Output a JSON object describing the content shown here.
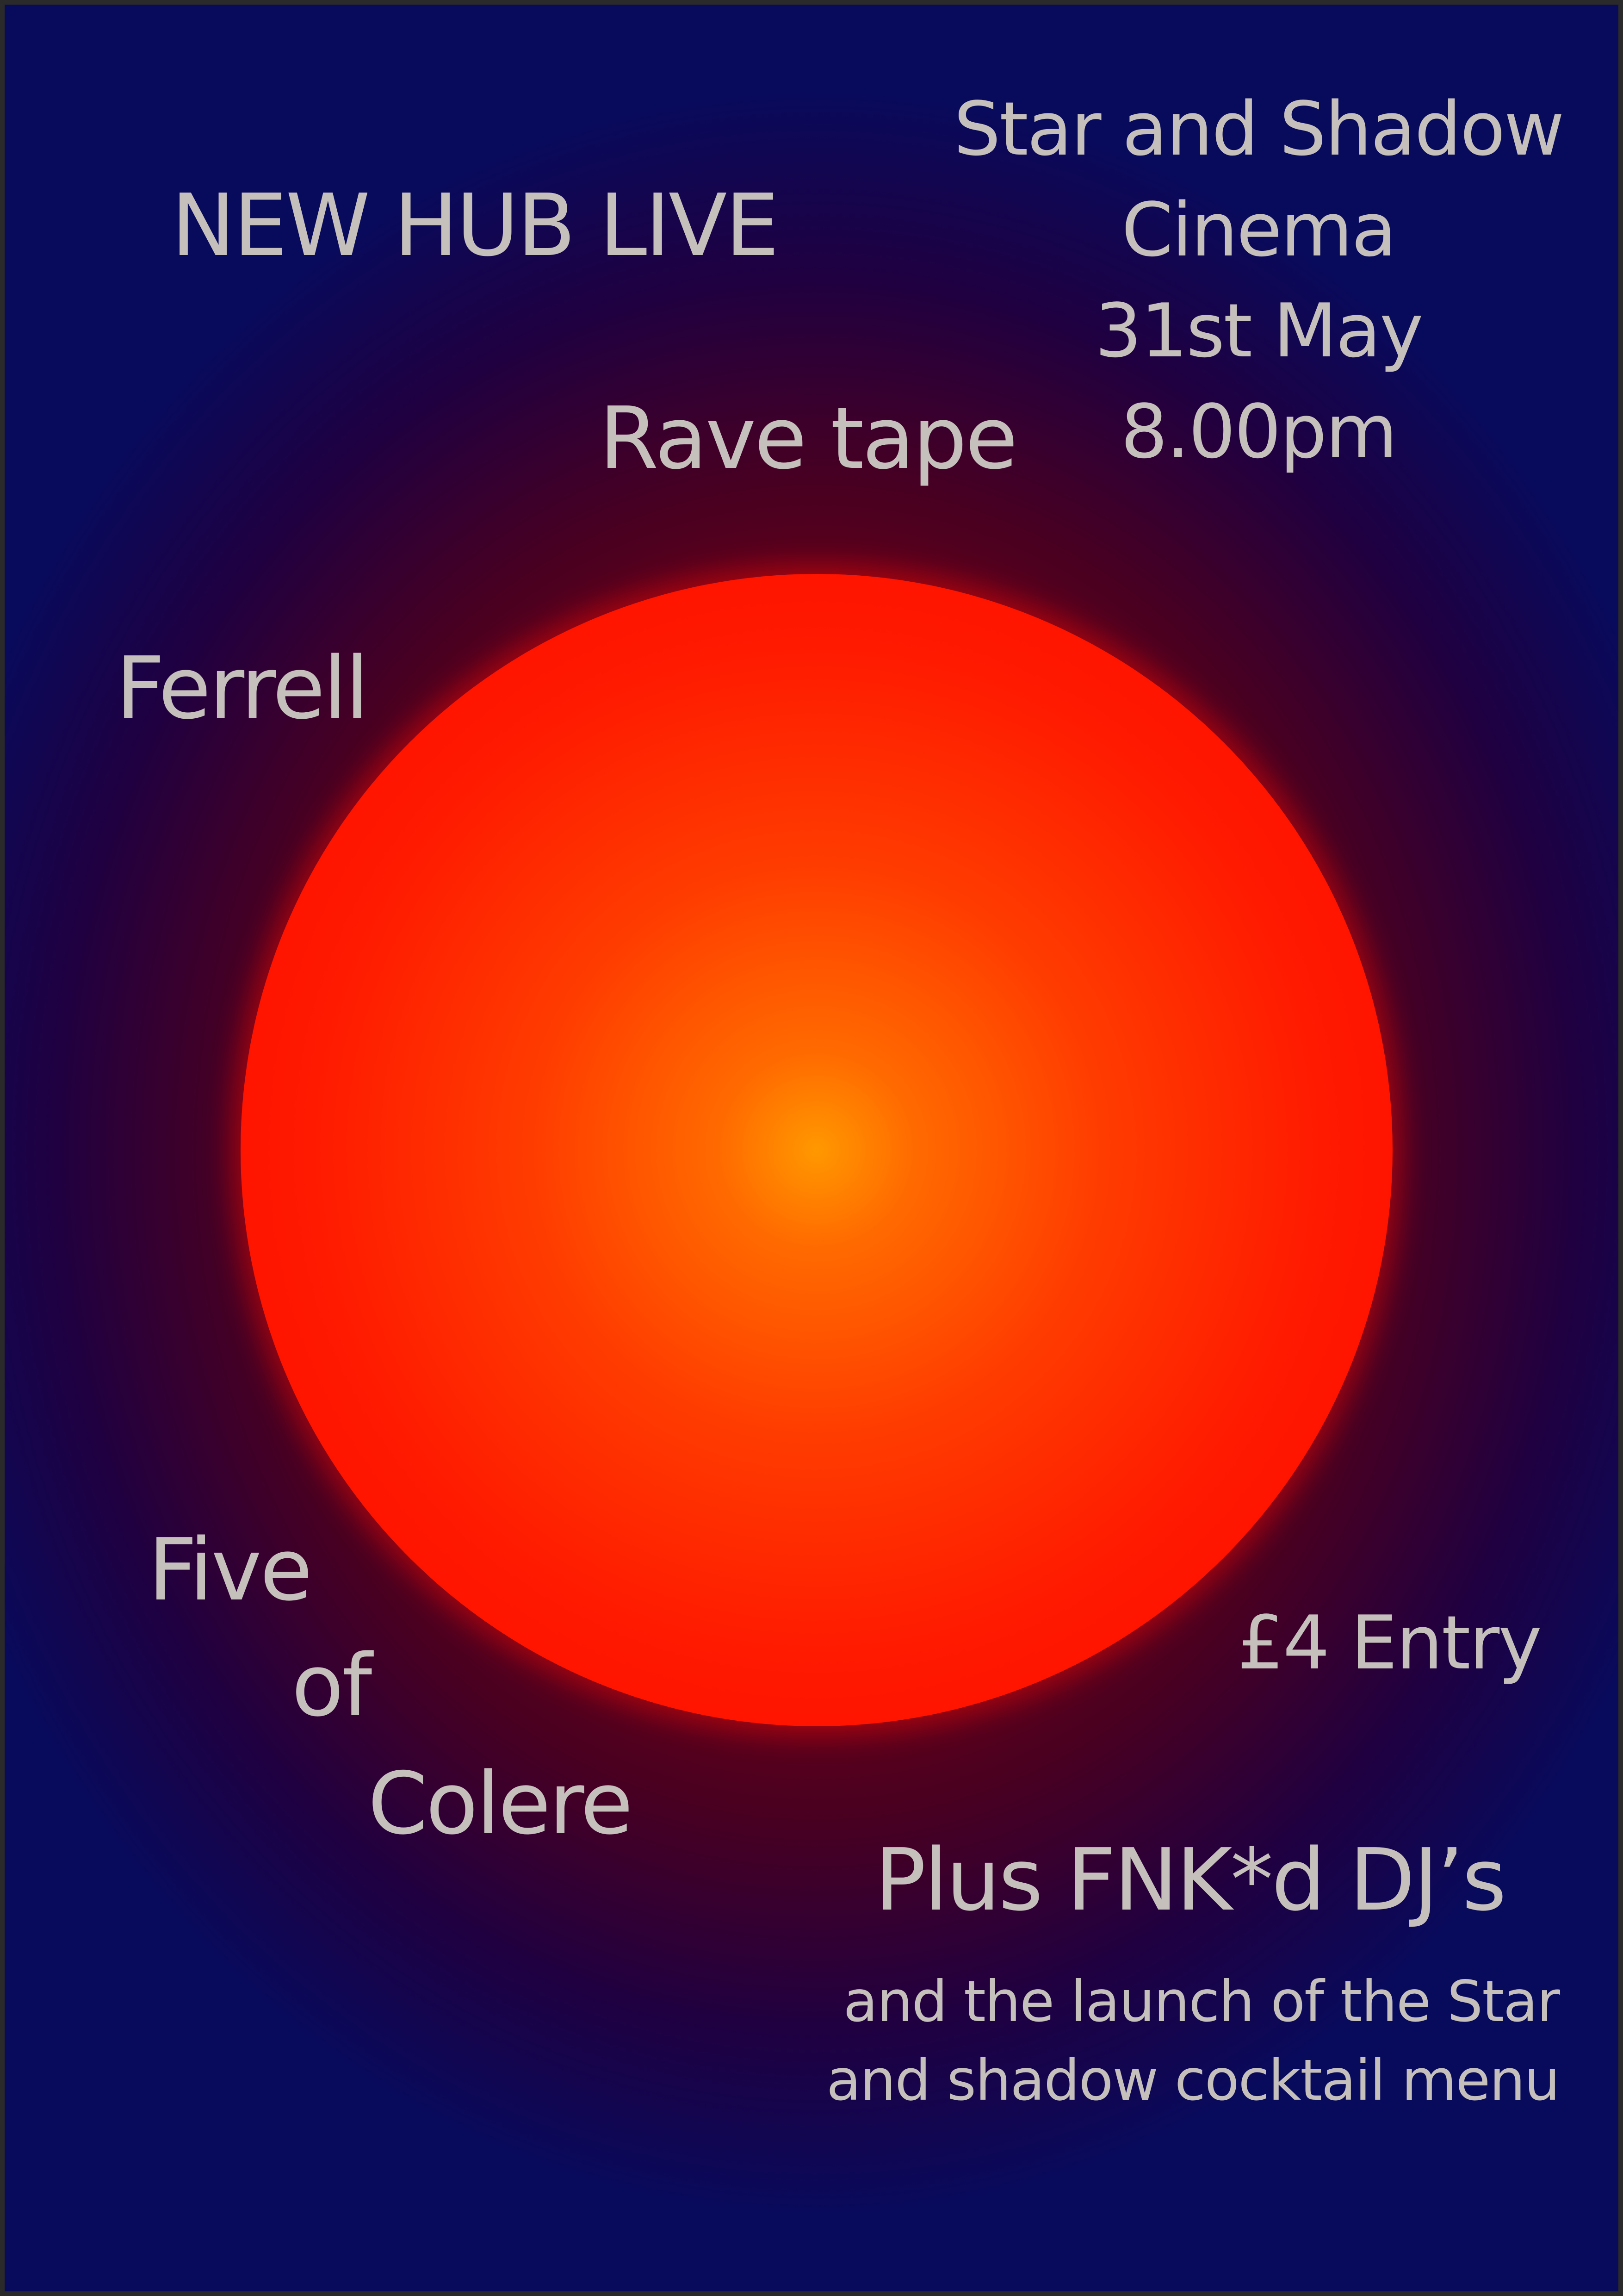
{
  "poster": {
    "title": "NEW HUB LIVE",
    "venue_lines": [
      "Star and Shadow",
      "Cinema",
      "31st May",
      "8.00pm"
    ],
    "headliner": "Rave tape",
    "act_2": "Ferrell",
    "act_3_lines": [
      "Five",
      "of",
      "Colere"
    ],
    "entry": "£4 Entry",
    "plus": "Plus FNK*d DJ’s",
    "launch_lines": [
      "and the launch of the Star",
      "and shadow cocktail menu"
    ]
  },
  "colors": {
    "background_edge": "#080a5c",
    "background_mid": "#8a0010",
    "sun_center": "#ff9800",
    "sun_edge": "#f20000",
    "text": "#c6c0bd"
  }
}
